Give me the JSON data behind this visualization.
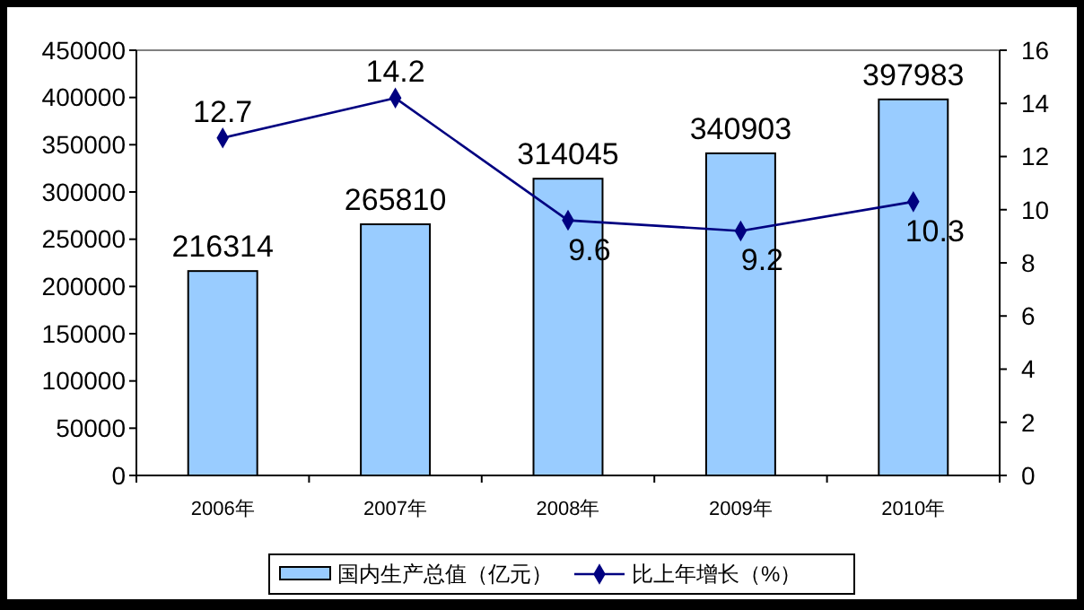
{
  "chart_data": {
    "type": "bar",
    "categories": [
      "2006年",
      "2007年",
      "2008年",
      "2009年",
      "2010年"
    ],
    "series": [
      {
        "name": "国内生产总值（亿元）",
        "color": "#99ccff",
        "values": [
          216314,
          265810,
          314045,
          340903,
          397983
        ]
      },
      {
        "name": "比上年增长（%）",
        "type": "line",
        "axis": "y2",
        "color": "#000080",
        "values": [
          12.7,
          14.2,
          9.6,
          9.2,
          10.3
        ]
      }
    ],
    "ylim": [
      0,
      450000
    ],
    "yticks": [
      0,
      50000,
      100000,
      150000,
      200000,
      250000,
      300000,
      350000,
      400000,
      450000
    ],
    "y2lim": [
      0,
      16
    ],
    "y2ticks": [
      0,
      2,
      4,
      6,
      8,
      10,
      12,
      14,
      16
    ],
    "data_labels": true,
    "legend": "bottom",
    "marker": "diamond",
    "grid": false
  }
}
